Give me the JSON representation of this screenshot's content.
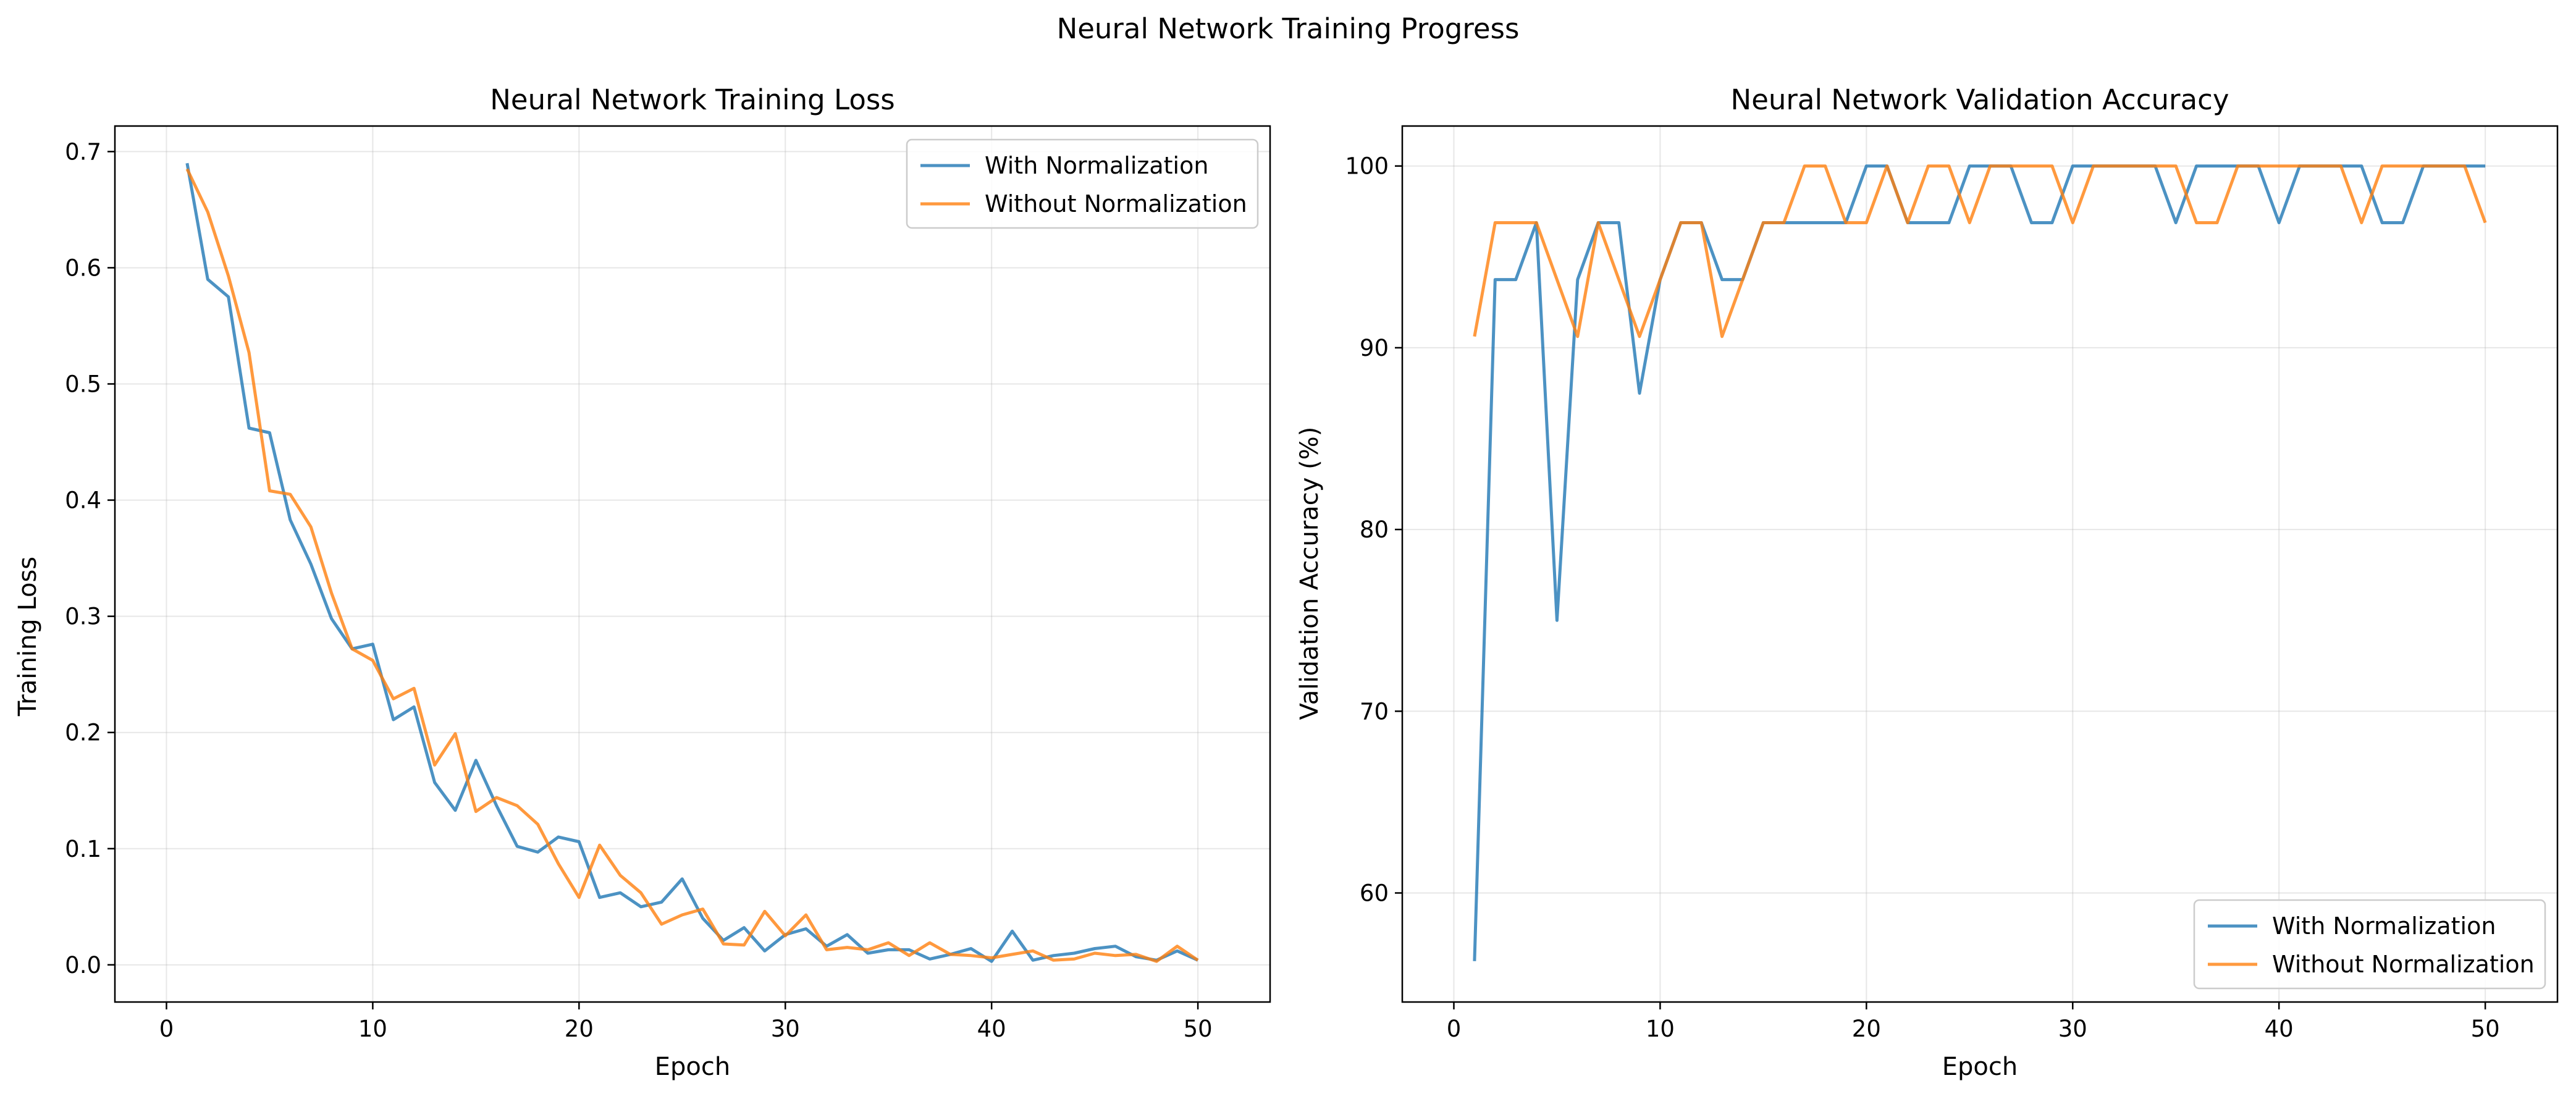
{
  "figure_title": "Neural Network Training Progress",
  "colors": {
    "with_normalization": "#1f77b4",
    "without_normalization": "#ff7f0e",
    "grid": "#b0b0b0",
    "axes": "#000000"
  },
  "chart_data": [
    {
      "type": "line",
      "title": "Neural Network Training Loss",
      "xlabel": "Epoch",
      "ylabel": "Training Loss",
      "xlim": [
        -2.5,
        53.5
      ],
      "ylim": [
        -0.032,
        0.722
      ],
      "xticks": [
        0,
        10,
        20,
        30,
        40,
        50
      ],
      "yticks": [
        0.0,
        0.1,
        0.2,
        0.3,
        0.4,
        0.5,
        0.6,
        0.7
      ],
      "ytick_labels": [
        "0.0",
        "0.1",
        "0.2",
        "0.3",
        "0.4",
        "0.5",
        "0.6",
        "0.7"
      ],
      "grid": true,
      "legend": "upper right",
      "x": [
        1,
        2,
        3,
        4,
        5,
        6,
        7,
        8,
        9,
        10,
        11,
        12,
        13,
        14,
        15,
        16,
        17,
        18,
        19,
        20,
        21,
        22,
        23,
        24,
        25,
        26,
        27,
        28,
        29,
        30,
        31,
        32,
        33,
        34,
        35,
        36,
        37,
        38,
        39,
        40,
        41,
        42,
        43,
        44,
        45,
        46,
        47,
        48,
        49,
        50
      ],
      "series": [
        {
          "name": "With Normalization",
          "color": "#1f77b4",
          "values": [
            0.69,
            0.59,
            0.575,
            0.462,
            0.458,
            0.383,
            0.345,
            0.298,
            0.272,
            0.276,
            0.211,
            0.222,
            0.157,
            0.133,
            0.176,
            0.137,
            0.102,
            0.097,
            0.11,
            0.106,
            0.058,
            0.062,
            0.05,
            0.054,
            0.074,
            0.04,
            0.021,
            0.032,
            0.012,
            0.026,
            0.031,
            0.016,
            0.026,
            0.01,
            0.013,
            0.013,
            0.005,
            0.009,
            0.014,
            0.003,
            0.029,
            0.004,
            0.008,
            0.01,
            0.014,
            0.016,
            0.007,
            0.004,
            0.012,
            0.004
          ]
        },
        {
          "name": "Without Normalization",
          "color": "#ff7f0e",
          "values": [
            0.685,
            0.648,
            0.593,
            0.527,
            0.408,
            0.405,
            0.377,
            0.32,
            0.272,
            0.262,
            0.229,
            0.238,
            0.172,
            0.199,
            0.132,
            0.144,
            0.137,
            0.121,
            0.087,
            0.058,
            0.103,
            0.077,
            0.062,
            0.035,
            0.043,
            0.048,
            0.018,
            0.017,
            0.046,
            0.025,
            0.043,
            0.013,
            0.015,
            0.013,
            0.019,
            0.008,
            0.019,
            0.009,
            0.008,
            0.006,
            0.009,
            0.012,
            0.004,
            0.005,
            0.01,
            0.008,
            0.009,
            0.003,
            0.016,
            0.004
          ]
        }
      ]
    },
    {
      "type": "line",
      "title": "Neural Network Validation Accuracy",
      "xlabel": "Epoch",
      "ylabel": "Validation Accuracy (%)",
      "xlim": [
        -2.5,
        53.5
      ],
      "ylim": [
        54.0,
        102.2
      ],
      "xticks": [
        0,
        10,
        20,
        30,
        40,
        50
      ],
      "yticks": [
        60,
        70,
        80,
        90,
        100
      ],
      "ytick_labels": [
        "60",
        "70",
        "80",
        "90",
        "100"
      ],
      "grid": true,
      "legend": "lower right",
      "x": [
        1,
        2,
        3,
        4,
        5,
        6,
        7,
        8,
        9,
        10,
        11,
        12,
        13,
        14,
        15,
        16,
        17,
        18,
        19,
        20,
        21,
        22,
        23,
        24,
        25,
        26,
        27,
        28,
        29,
        30,
        31,
        32,
        33,
        34,
        35,
        36,
        37,
        38,
        39,
        40,
        41,
        42,
        43,
        44,
        45,
        46,
        47,
        48,
        49,
        50
      ],
      "series": [
        {
          "name": "With Normalization",
          "color": "#1f77b4",
          "values": [
            56.25,
            93.75,
            93.75,
            96.88,
            75.0,
            93.75,
            96.88,
            96.88,
            87.5,
            93.75,
            96.88,
            96.88,
            93.75,
            93.75,
            96.88,
            96.88,
            96.88,
            96.88,
            96.88,
            100,
            100,
            96.88,
            96.88,
            96.88,
            100,
            100,
            100,
            96.88,
            96.88,
            100,
            100,
            100,
            100,
            100,
            96.88,
            100,
            100,
            100,
            100,
            96.88,
            100,
            100,
            100,
            100,
            96.88,
            96.88,
            100,
            100,
            100,
            100
          ]
        },
        {
          "name": "Without Normalization",
          "color": "#ff7f0e",
          "values": [
            90.62,
            96.88,
            96.88,
            96.88,
            93.75,
            90.62,
            96.88,
            93.75,
            90.62,
            93.75,
            96.88,
            96.88,
            90.62,
            93.75,
            96.88,
            96.88,
            100,
            100,
            96.88,
            96.88,
            100,
            96.88,
            100,
            100,
            96.88,
            100,
            100,
            100,
            100,
            96.88,
            100,
            100,
            100,
            100,
            100,
            96.88,
            96.88,
            100,
            100,
            100,
            100,
            100,
            100,
            96.88,
            100,
            100,
            100,
            100,
            100,
            96.88
          ]
        }
      ]
    }
  ]
}
